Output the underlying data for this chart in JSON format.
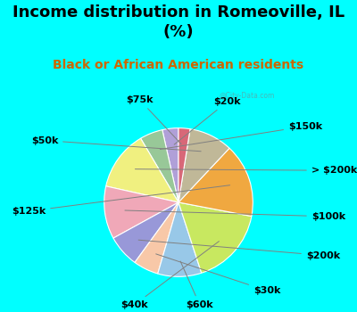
{
  "title": "Income distribution in Romeoville, IL\n(%)",
  "subtitle": "Black or African American residents",
  "bg_color": "#00FFFF",
  "chart_bg": "#d8f0e0",
  "labels": [
    "$20k",
    "$150k",
    "> $200k",
    "$100k",
    "$200k",
    "$30k",
    "$60k",
    "$40k",
    "$125k",
    "$50k",
    "$75k"
  ],
  "values": [
    3.5,
    5.0,
    13.0,
    11.5,
    7.0,
    5.5,
    9.5,
    17.0,
    16.0,
    9.5,
    2.5
  ],
  "colors": [
    "#b0a0d8",
    "#98c898",
    "#f0f080",
    "#f0a8b8",
    "#9898d8",
    "#f8c8a8",
    "#98c8e8",
    "#c8e860",
    "#f0a840",
    "#c0b898",
    "#d86878"
  ],
  "startangle": 90,
  "label_fontsize": 8,
  "title_fontsize": 13,
  "subtitle_fontsize": 10,
  "watermark": "@City-Data.com",
  "title_color": "#000000",
  "subtitle_color": "#cc6600"
}
